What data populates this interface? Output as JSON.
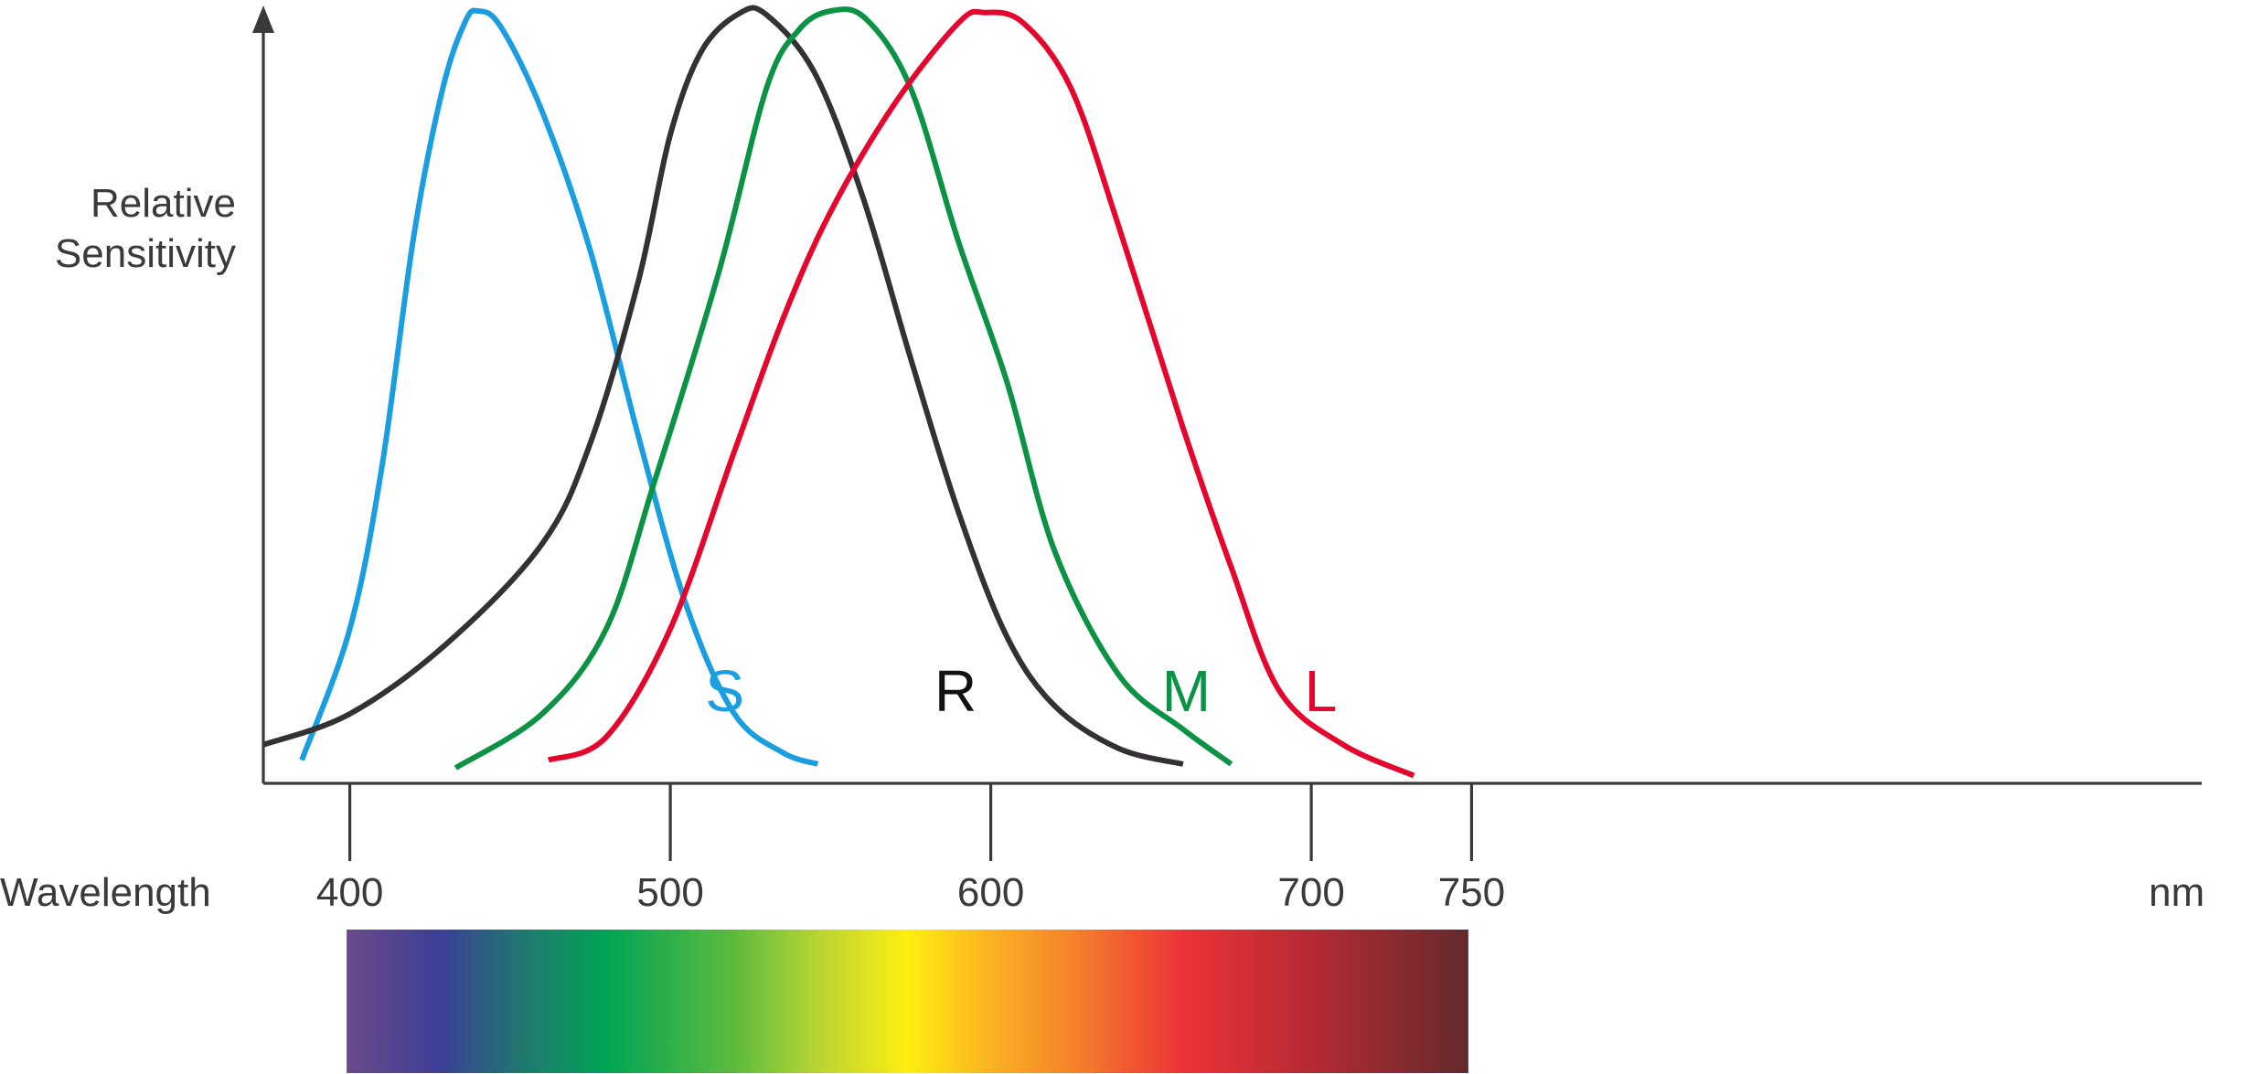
{
  "chart_data": {
    "type": "line",
    "ylabel_lines": [
      "Relative",
      "Sensitivity"
    ],
    "xlabel": "Wavelength",
    "x_unit": "nm",
    "xlim": [
      373,
      785
    ],
    "ylim": [
      0,
      1
    ],
    "x_ticks": [
      {
        "value": 400,
        "label": "400"
      },
      {
        "value": 500,
        "label": "500"
      },
      {
        "value": 600,
        "label": "600"
      },
      {
        "value": 700,
        "label": "700"
      },
      {
        "value": 750,
        "label": "750"
      }
    ],
    "spectrum_range": [
      399,
      749
    ],
    "spectrum_colors": [
      {
        "wl": 399,
        "color": "#6b4a8a"
      },
      {
        "wl": 428,
        "color": "#3b3f96"
      },
      {
        "wl": 455,
        "color": "#1f7a6e"
      },
      {
        "wl": 480,
        "color": "#00a455"
      },
      {
        "wl": 520,
        "color": "#5dbb3e"
      },
      {
        "wl": 545,
        "color": "#b5d334"
      },
      {
        "wl": 574,
        "color": "#ffee11"
      },
      {
        "wl": 600,
        "color": "#fbb222"
      },
      {
        "wl": 625,
        "color": "#f5832a"
      },
      {
        "wl": 660,
        "color": "#ec3237"
      },
      {
        "wl": 700,
        "color": "#b52a33"
      },
      {
        "wl": 749,
        "color": "#632a2d"
      }
    ],
    "series": [
      {
        "name": "S",
        "color": "#1a9ee0",
        "points": [
          [
            385,
            0.03
          ],
          [
            400,
            0.2
          ],
          [
            410,
            0.41
          ],
          [
            420,
            0.71
          ],
          [
            429,
            0.9
          ],
          [
            436,
            0.986
          ],
          [
            440,
            1.0
          ],
          [
            447,
            0.98
          ],
          [
            460,
            0.87
          ],
          [
            475,
            0.69
          ],
          [
            490,
            0.45
          ],
          [
            505,
            0.23
          ],
          [
            520,
            0.09
          ],
          [
            535,
            0.04
          ],
          [
            546,
            0.025
          ]
        ]
      },
      {
        "name": "R",
        "color": "#333133",
        "points": [
          [
            373,
            0.05
          ],
          [
            400,
            0.09
          ],
          [
            430,
            0.18
          ],
          [
            460,
            0.31
          ],
          [
            475,
            0.44
          ],
          [
            490,
            0.65
          ],
          [
            500,
            0.84
          ],
          [
            510,
            0.95
          ],
          [
            522,
            0.998
          ],
          [
            530,
            0.995
          ],
          [
            545,
            0.92
          ],
          [
            560,
            0.76
          ],
          [
            575,
            0.55
          ],
          [
            590,
            0.35
          ],
          [
            605,
            0.19
          ],
          [
            620,
            0.1
          ],
          [
            640,
            0.045
          ],
          [
            660,
            0.025
          ]
        ]
      },
      {
        "name": "M",
        "color": "#0b9244",
        "points": [
          [
            433,
            0.02
          ],
          [
            460,
            0.09
          ],
          [
            480,
            0.2
          ],
          [
            495,
            0.39
          ],
          [
            515,
            0.66
          ],
          [
            530,
            0.9
          ],
          [
            540,
            0.975
          ],
          [
            550,
            1.0
          ],
          [
            561,
            0.99
          ],
          [
            575,
            0.9
          ],
          [
            590,
            0.7
          ],
          [
            605,
            0.52
          ],
          [
            620,
            0.3
          ],
          [
            640,
            0.14
          ],
          [
            660,
            0.07
          ],
          [
            675,
            0.025
          ]
        ]
      },
      {
        "name": "L",
        "color": "#e4062c",
        "points": [
          [
            462,
            0.03
          ],
          [
            480,
            0.06
          ],
          [
            500,
            0.2
          ],
          [
            520,
            0.43
          ],
          [
            535,
            0.6
          ],
          [
            550,
            0.74
          ],
          [
            570,
            0.88
          ],
          [
            590,
            0.985
          ],
          [
            598,
            0.998
          ],
          [
            610,
            0.985
          ],
          [
            625,
            0.9
          ],
          [
            640,
            0.72
          ],
          [
            660,
            0.46
          ],
          [
            675,
            0.28
          ],
          [
            690,
            0.12
          ],
          [
            710,
            0.05
          ],
          [
            732,
            0.01
          ]
        ]
      }
    ],
    "series_labels": [
      {
        "name": "S",
        "wl": 517,
        "color": "#1a9ee0"
      },
      {
        "name": "R",
        "wl": 589,
        "color": "#111111"
      },
      {
        "name": "M",
        "wl": 661,
        "color": "#0b9244"
      },
      {
        "name": "L",
        "wl": 703,
        "color": "#e4062c"
      }
    ]
  }
}
